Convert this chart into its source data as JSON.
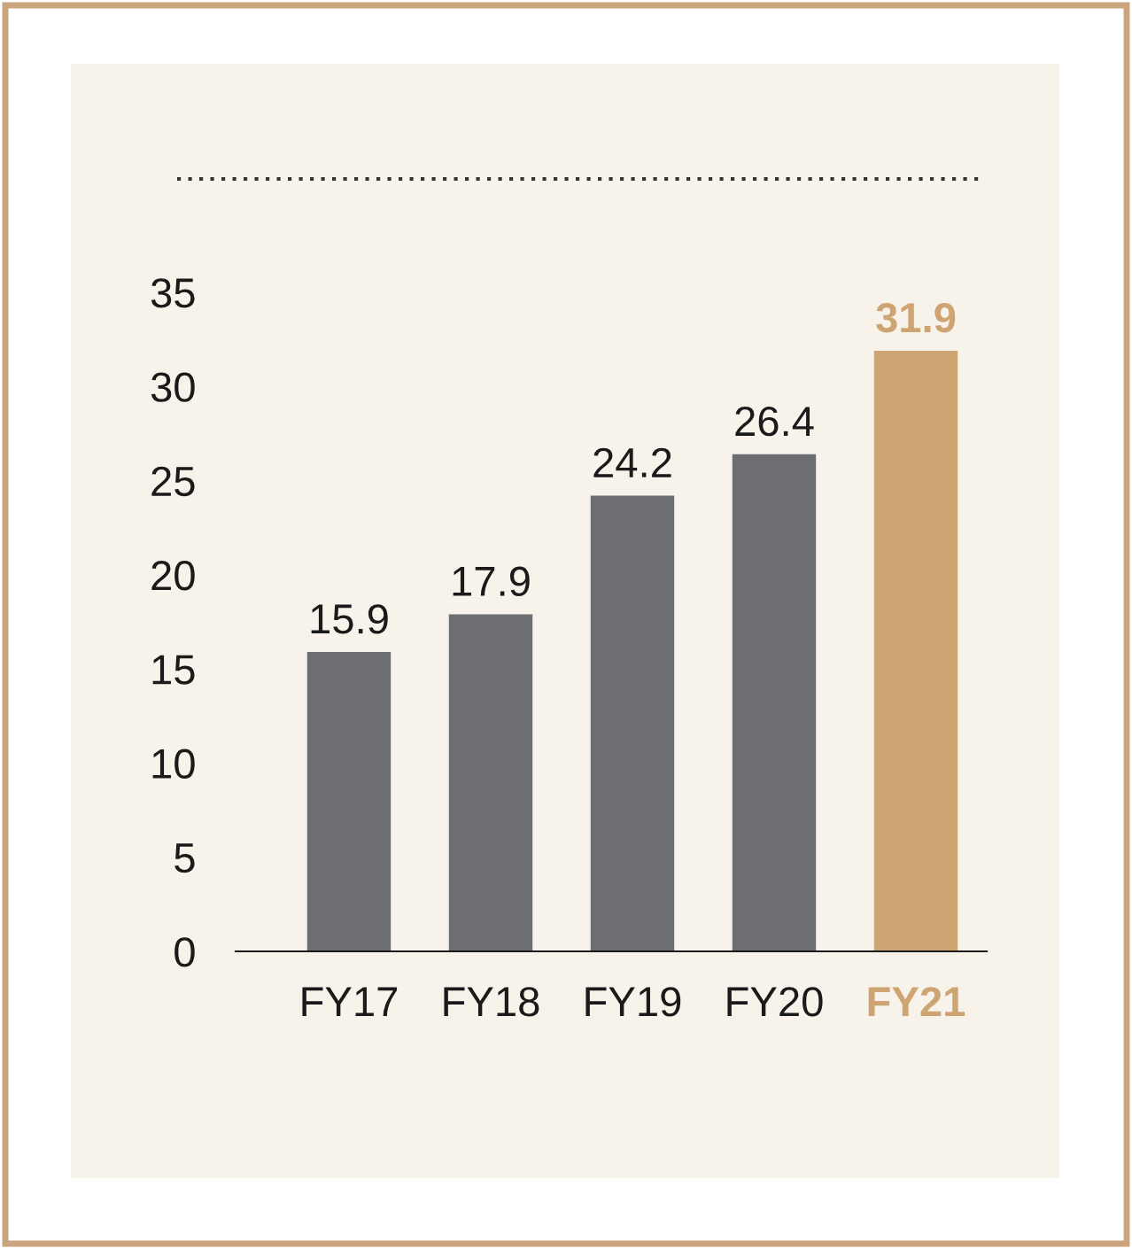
{
  "chart_data": {
    "type": "bar",
    "categories": [
      "FY17",
      "FY18",
      "FY19",
      "FY20",
      "FY21"
    ],
    "values": [
      15.9,
      17.9,
      24.2,
      26.4,
      31.9
    ],
    "colors": [
      "#6d6e71",
      "#6d6e71",
      "#6d6e71",
      "#6d6e71",
      "#cfa473"
    ],
    "ylim": [
      0,
      35
    ],
    "yticks": [
      0,
      5,
      10,
      15,
      20,
      25,
      30,
      35
    ],
    "data_labels": true,
    "grid": false,
    "legend": false
  }
}
